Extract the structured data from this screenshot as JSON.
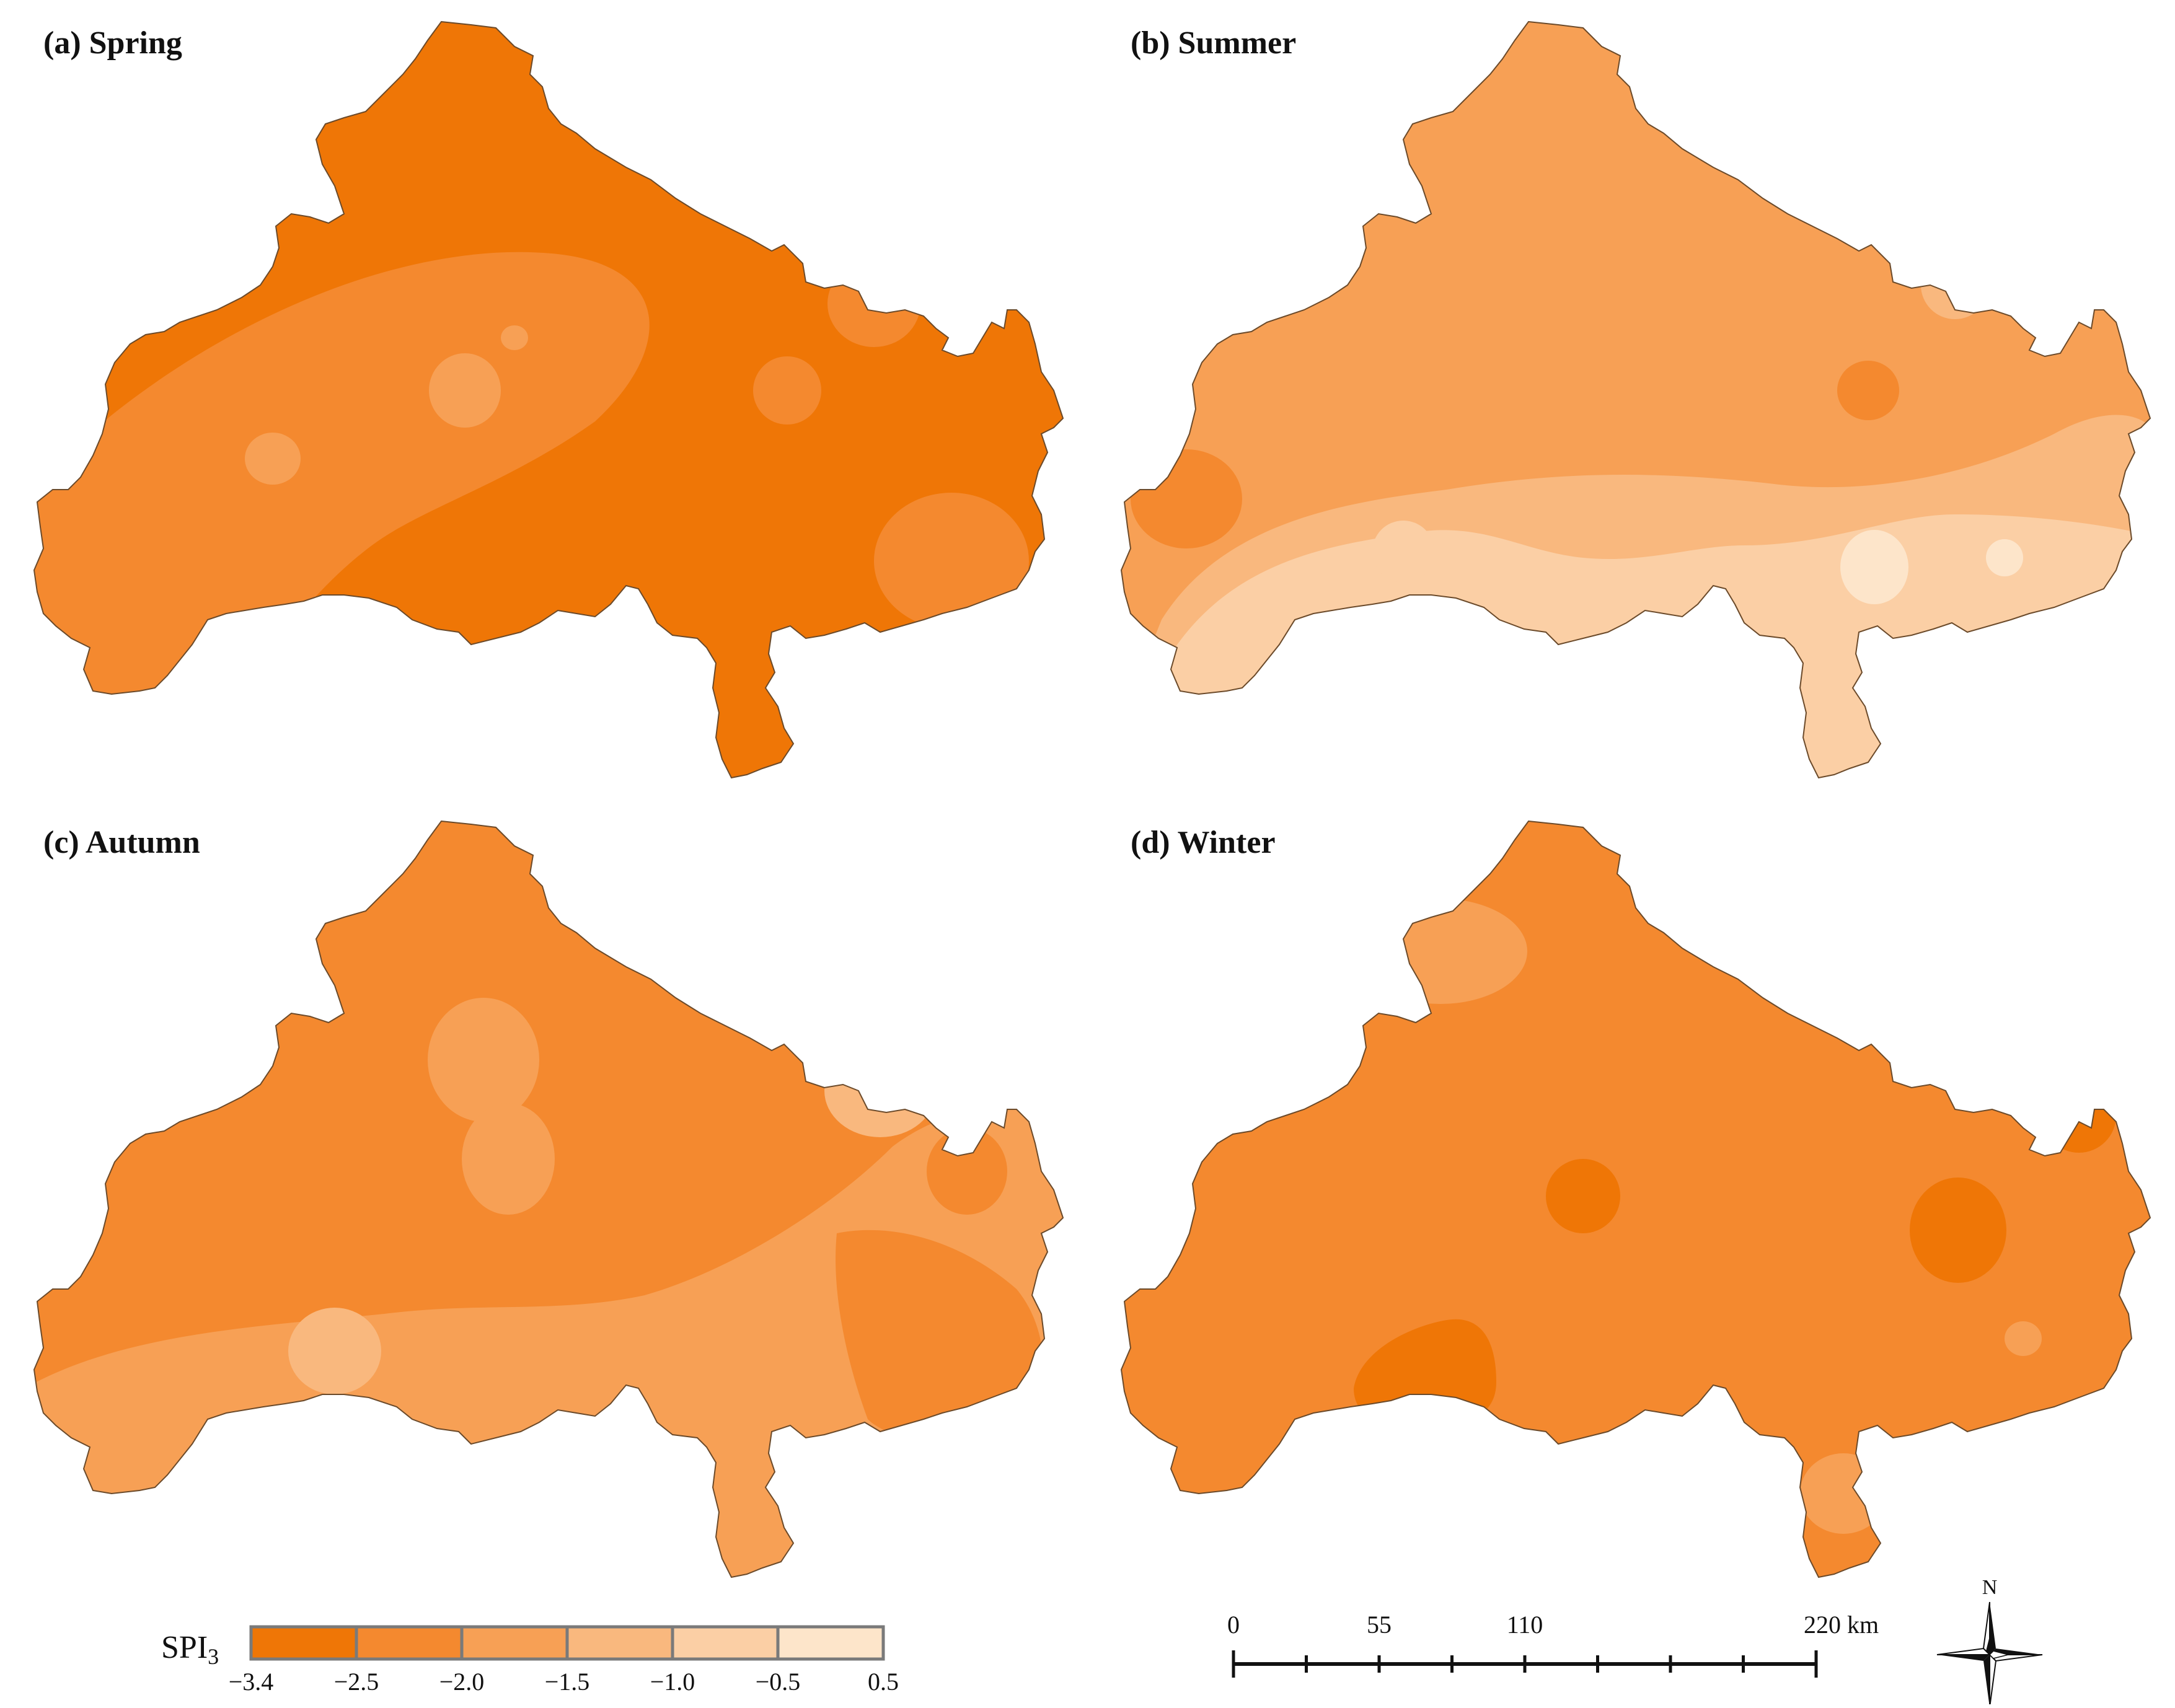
{
  "panels": [
    {
      "title": "(a) Spring",
      "base_class": 0,
      "patches": [
        {
          "cls": 1,
          "shape": "band"
        },
        {
          "cls": 2,
          "shape": "blob"
        },
        {
          "cls": 2,
          "shape": "blob"
        },
        {
          "cls": 2,
          "shape": "blob"
        },
        {
          "cls": 1,
          "shape": "blob"
        },
        {
          "cls": 1,
          "shape": "blob"
        },
        {
          "cls": 1,
          "shape": "blob"
        }
      ]
    },
    {
      "title": "(b) Summer",
      "base_class": 2,
      "patches": [
        {
          "cls": 1,
          "shape": "blob"
        },
        {
          "cls": 1,
          "shape": "blob"
        },
        {
          "cls": 1,
          "shape": "blob"
        },
        {
          "cls": 3,
          "shape": "band"
        },
        {
          "cls": 4,
          "shape": "band"
        },
        {
          "cls": 4,
          "shape": "blob"
        },
        {
          "cls": 5,
          "shape": "blob"
        },
        {
          "cls": 5,
          "shape": "blob"
        },
        {
          "cls": 3,
          "shape": "blob"
        }
      ]
    },
    {
      "title": "(c) Autumn",
      "base_class": 1,
      "patches": [
        {
          "cls": 2,
          "shape": "band"
        },
        {
          "cls": 2,
          "shape": "blob"
        },
        {
          "cls": 2,
          "shape": "blob"
        },
        {
          "cls": 3,
          "shape": "blob"
        },
        {
          "cls": 3,
          "shape": "blob"
        },
        {
          "cls": 1,
          "shape": "blob"
        },
        {
          "cls": 1,
          "shape": "blob"
        }
      ]
    },
    {
      "title": "(d) Winter",
      "base_class": 1,
      "patches": [
        {
          "cls": 2,
          "shape": "blob"
        },
        {
          "cls": 0,
          "shape": "blob"
        },
        {
          "cls": 0,
          "shape": "blob"
        },
        {
          "cls": 0,
          "shape": "blob"
        },
        {
          "cls": 0,
          "shape": "blob"
        },
        {
          "cls": 2,
          "shape": "blob"
        },
        {
          "cls": 2,
          "shape": "blob"
        }
      ]
    }
  ],
  "legend": {
    "label_main": "SPI",
    "label_sub": "3",
    "ticks": [
      "−3.4",
      "−2.5",
      "−2.0",
      "−1.5",
      "−1.0",
      "−0.5",
      "0.5"
    ],
    "class_colors": [
      "#EF7606",
      "#F4892F",
      "#F7A055",
      "#F9B87E",
      "#FBCFA5",
      "#FDE5CA"
    ]
  },
  "scalebar": {
    "labels": [
      "0",
      "55",
      "110",
      "220 km"
    ],
    "values_km": [
      0,
      55,
      110,
      220
    ],
    "minor_divisions": 8
  },
  "north_arrow": {
    "label": "N"
  }
}
